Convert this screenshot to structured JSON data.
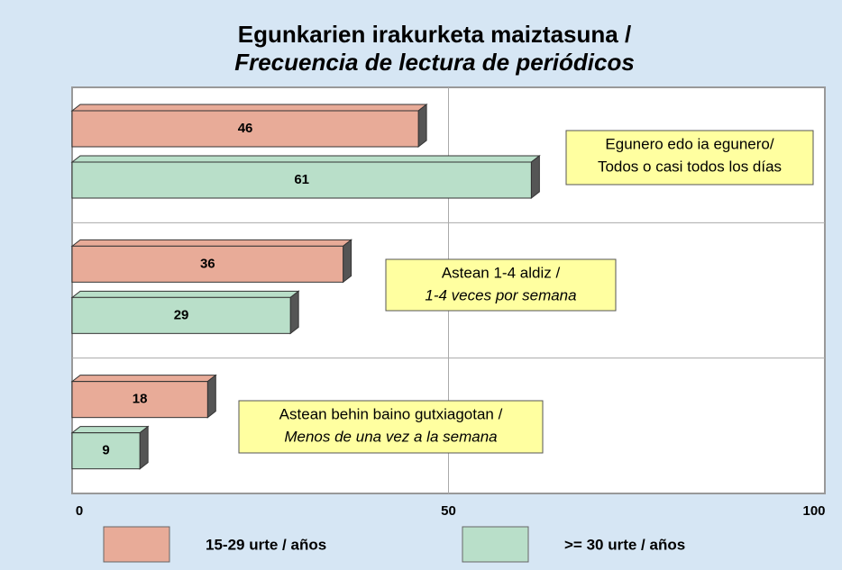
{
  "chart_data": {
    "type": "bar",
    "orientation": "horizontal",
    "title": [
      "Egunkarien irakurketa maiztasuna /",
      "Frecuencia de lectura de periódicos"
    ],
    "categories": [
      [
        "Egunero edo ia egunero/",
        "Todos o casi todos los días"
      ],
      [
        "Astean 1-4 aldiz /",
        "1-4 veces por semana"
      ],
      [
        "Astean behin baino gutxiagotan /",
        "Menos de una vez a la semana"
      ]
    ],
    "series": [
      {
        "name": "15-29 urte / años",
        "color": "#e8ab98",
        "values": [
          46,
          36,
          18
        ]
      },
      {
        "name": ">= 30 urte / años",
        "color": "#b9dfc9",
        "values": [
          61,
          29,
          9
        ]
      }
    ],
    "xlim": [
      0,
      100
    ],
    "xticks": [
      0,
      50,
      100
    ],
    "grid": true,
    "legend": "bottom"
  }
}
